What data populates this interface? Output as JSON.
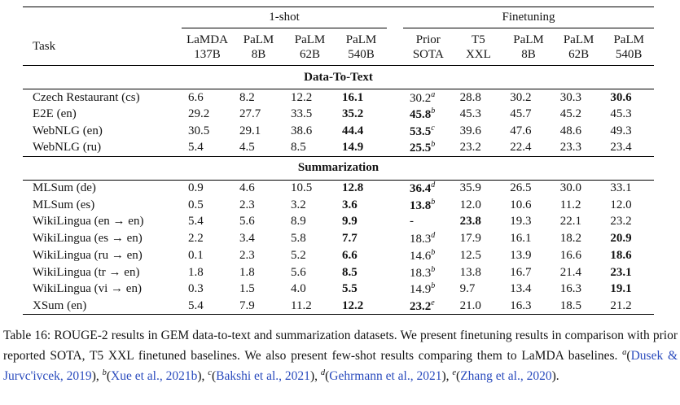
{
  "colors": {
    "citation": "#2a4bbd",
    "text": "#141414",
    "rule": "#000000"
  },
  "table": {
    "task_header": "Task",
    "group_headers": {
      "oneshot": {
        "label": "1-shot",
        "span": 4
      },
      "finetuning": {
        "label": "Finetuning",
        "span": 5
      }
    },
    "columns": [
      {
        "line1": "LaMDA",
        "line2": "137B",
        "group": "1-shot"
      },
      {
        "line1": "PaLM",
        "line2": "8B",
        "group": "1-shot"
      },
      {
        "line1": "PaLM",
        "line2": "62B",
        "group": "1-shot"
      },
      {
        "line1": "PaLM",
        "line2": "540B",
        "group": "1-shot"
      },
      {
        "line1": "Prior",
        "line2": "SOTA",
        "group": "Finetuning"
      },
      {
        "line1": "T5",
        "line2": "XXL",
        "group": "Finetuning"
      },
      {
        "line1": "PaLM",
        "line2": "8B",
        "group": "Finetuning"
      },
      {
        "line1": "PaLM",
        "line2": "62B",
        "group": "Finetuning"
      },
      {
        "line1": "PaLM",
        "line2": "540B",
        "group": "Finetuning"
      }
    ],
    "sections": [
      {
        "title": "Data-To-Text",
        "rows": [
          {
            "task": "Czech Restaurant (cs)",
            "cells": [
              {
                "v": "6.6"
              },
              {
                "v": "8.2"
              },
              {
                "v": "12.2"
              },
              {
                "v": "16.1",
                "b": 1
              },
              {
                "v": "30.2",
                "sup": "a"
              },
              {
                "v": "28.8"
              },
              {
                "v": "30.2"
              },
              {
                "v": "30.3"
              },
              {
                "v": "30.6",
                "b": 1
              }
            ]
          },
          {
            "task": "E2E (en)",
            "cells": [
              {
                "v": "29.2"
              },
              {
                "v": "27.7"
              },
              {
                "v": "33.5"
              },
              {
                "v": "35.2",
                "b": 1
              },
              {
                "v": "45.8",
                "b": 1,
                "sup": "b"
              },
              {
                "v": "45.3"
              },
              {
                "v": "45.7"
              },
              {
                "v": "45.2"
              },
              {
                "v": "45.3"
              }
            ]
          },
          {
            "task": "WebNLG (en)",
            "cells": [
              {
                "v": "30.5"
              },
              {
                "v": "29.1"
              },
              {
                "v": "38.6"
              },
              {
                "v": "44.4",
                "b": 1
              },
              {
                "v": "53.5",
                "b": 1,
                "sup": "c"
              },
              {
                "v": "39.6"
              },
              {
                "v": "47.6"
              },
              {
                "v": "48.6"
              },
              {
                "v": "49.3"
              }
            ]
          },
          {
            "task": "WebNLG (ru)",
            "cells": [
              {
                "v": "5.4"
              },
              {
                "v": "4.5"
              },
              {
                "v": "8.5"
              },
              {
                "v": "14.9",
                "b": 1
              },
              {
                "v": "25.5",
                "b": 1,
                "sup": "b"
              },
              {
                "v": "23.2"
              },
              {
                "v": "22.4"
              },
              {
                "v": "23.3"
              },
              {
                "v": "23.4"
              }
            ]
          }
        ]
      },
      {
        "title": "Summarization",
        "rows": [
          {
            "task": "MLSum (de)",
            "cells": [
              {
                "v": "0.9"
              },
              {
                "v": "4.6"
              },
              {
                "v": "10.5"
              },
              {
                "v": "12.8",
                "b": 1
              },
              {
                "v": "36.4",
                "b": 1,
                "sup": "d"
              },
              {
                "v": "35.9"
              },
              {
                "v": "26.5"
              },
              {
                "v": "30.0"
              },
              {
                "v": "33.1"
              }
            ]
          },
          {
            "task": "MLSum (es)",
            "cells": [
              {
                "v": "0.5"
              },
              {
                "v": "2.3"
              },
              {
                "v": "3.2"
              },
              {
                "v": "3.6",
                "b": 1
              },
              {
                "v": "13.8",
                "b": 1,
                "sup": "b"
              },
              {
                "v": "12.0"
              },
              {
                "v": "10.6"
              },
              {
                "v": "11.2"
              },
              {
                "v": "12.0"
              }
            ]
          },
          {
            "task": "WikiLingua (en → en)",
            "cells": [
              {
                "v": "5.4"
              },
              {
                "v": "5.6"
              },
              {
                "v": "8.9"
              },
              {
                "v": "9.9",
                "b": 1
              },
              {
                "v": "-"
              },
              {
                "v": "23.8",
                "b": 1
              },
              {
                "v": "19.3"
              },
              {
                "v": "22.1"
              },
              {
                "v": "23.2"
              }
            ]
          },
          {
            "task": "WikiLingua (es → en)",
            "cells": [
              {
                "v": "2.2"
              },
              {
                "v": "3.4"
              },
              {
                "v": "5.8"
              },
              {
                "v": "7.7",
                "b": 1
              },
              {
                "v": "18.3",
                "sup": "d"
              },
              {
                "v": "17.9"
              },
              {
                "v": "16.1"
              },
              {
                "v": "18.2"
              },
              {
                "v": "20.9",
                "b": 1
              }
            ]
          },
          {
            "task": "WikiLingua (ru → en)",
            "cells": [
              {
                "v": "0.1"
              },
              {
                "v": "2.3"
              },
              {
                "v": "5.2"
              },
              {
                "v": "6.6",
                "b": 1
              },
              {
                "v": "14.6",
                "sup": "b"
              },
              {
                "v": "12.5"
              },
              {
                "v": "13.9"
              },
              {
                "v": "16.6"
              },
              {
                "v": "18.6",
                "b": 1
              }
            ]
          },
          {
            "task": "WikiLingua (tr → en)",
            "cells": [
              {
                "v": "1.8"
              },
              {
                "v": "1.8"
              },
              {
                "v": "5.6"
              },
              {
                "v": "8.5",
                "b": 1
              },
              {
                "v": "18.3",
                "sup": "b"
              },
              {
                "v": "13.8"
              },
              {
                "v": "16.7"
              },
              {
                "v": "21.4"
              },
              {
                "v": "23.1",
                "b": 1
              }
            ]
          },
          {
            "task": "WikiLingua (vi → en)",
            "cells": [
              {
                "v": "0.3"
              },
              {
                "v": "1.5"
              },
              {
                "v": "4.0"
              },
              {
                "v": "5.5",
                "b": 1
              },
              {
                "v": "14.9",
                "sup": "b"
              },
              {
                "v": "9.7"
              },
              {
                "v": "13.4"
              },
              {
                "v": "16.3"
              },
              {
                "v": "19.1",
                "b": 1
              }
            ]
          },
          {
            "task": "XSum (en)",
            "cells": [
              {
                "v": "5.4"
              },
              {
                "v": "7.9"
              },
              {
                "v": "11.2"
              },
              {
                "v": "12.2",
                "b": 1
              },
              {
                "v": "23.2",
                "b": 1,
                "sup": "e"
              },
              {
                "v": "21.0"
              },
              {
                "v": "16.3"
              },
              {
                "v": "18.5"
              },
              {
                "v": "21.2"
              }
            ]
          }
        ]
      }
    ]
  },
  "caption": {
    "segments": [
      {
        "style": "plain",
        "text": "Table 16: ROUGE-2 results in GEM data-to-text and summarization datasets. We present finetuning results in comparison with prior reported SOTA, T5 XXL finetuned baselines. We also present few-shot results comparing them to LaMDA baselines. "
      },
      {
        "style": "sup",
        "text": "a"
      },
      {
        "style": "plain",
        "text": "("
      },
      {
        "style": "link",
        "text": "Dusek & Jurvc'ivcek, 2019"
      },
      {
        "style": "plain",
        "text": "), "
      },
      {
        "style": "sup",
        "text": "b"
      },
      {
        "style": "plain",
        "text": "("
      },
      {
        "style": "link",
        "text": "Xue et al., 2021b"
      },
      {
        "style": "plain",
        "text": "), "
      },
      {
        "style": "sup",
        "text": "c"
      },
      {
        "style": "plain",
        "text": "("
      },
      {
        "style": "link",
        "text": "Bakshi et al., 2021"
      },
      {
        "style": "plain",
        "text": "), "
      },
      {
        "style": "sup",
        "text": "d"
      },
      {
        "style": "plain",
        "text": "("
      },
      {
        "style": "link",
        "text": "Gehrmann et al., 2021"
      },
      {
        "style": "plain",
        "text": "), "
      },
      {
        "style": "sup",
        "text": "e"
      },
      {
        "style": "plain",
        "text": "("
      },
      {
        "style": "link",
        "text": "Zhang et al., 2020"
      },
      {
        "style": "plain",
        "text": ")."
      }
    ]
  }
}
